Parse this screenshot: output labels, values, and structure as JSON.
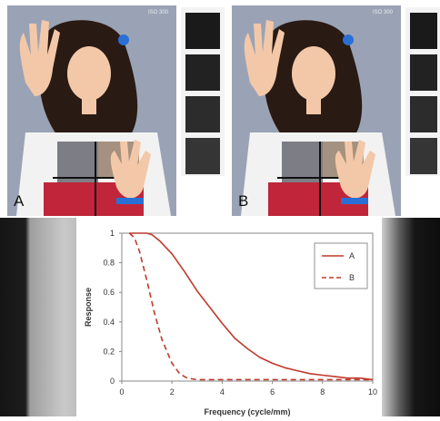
{
  "photos": [
    {
      "label": "A",
      "iso": "ISO 300"
    },
    {
      "label": "B",
      "iso": "ISO 300"
    }
  ],
  "colors": {
    "series": "#c0392b",
    "skin": "#f3c8a8",
    "hair": "#2a1a14",
    "shirt_red": "#c0253a",
    "shirt_grey": "#7d7d85",
    "shirt_tan": "#a4917f",
    "shirt_white": "#f2f2f2",
    "backdrop": "#9aa3b5"
  },
  "chart_data": {
    "type": "line",
    "xlabel": "Frequency (cycle/mm)",
    "ylabel": "Response",
    "xlim": [
      0,
      10
    ],
    "ylim": [
      0,
      1
    ],
    "xticks": [
      0,
      2,
      4,
      6,
      8,
      10
    ],
    "yticks": [
      0,
      0.2,
      0.4,
      0.6,
      0.8,
      1
    ],
    "legend_position": "top-right",
    "grid": false,
    "series": [
      {
        "name": "A",
        "style": "solid",
        "x": [
          0.3,
          1.0,
          1.2,
          1.5,
          2.0,
          2.5,
          3.0,
          3.5,
          4.0,
          4.5,
          5.0,
          5.5,
          6.0,
          6.5,
          7.0,
          7.5,
          8.0,
          8.5,
          9.0,
          9.5,
          10.0
        ],
        "y": [
          1.0,
          1.0,
          0.99,
          0.95,
          0.86,
          0.74,
          0.61,
          0.5,
          0.39,
          0.29,
          0.22,
          0.16,
          0.12,
          0.09,
          0.07,
          0.05,
          0.04,
          0.03,
          0.02,
          0.02,
          0.01
        ]
      },
      {
        "name": "B",
        "style": "dashed",
        "x": [
          0.3,
          0.5,
          0.7,
          1.0,
          1.3,
          1.6,
          2.0,
          2.3,
          2.6,
          3.0,
          4.0,
          5.0,
          6.0,
          7.0,
          8.0,
          9.0,
          10.0
        ],
        "y": [
          1.0,
          0.97,
          0.88,
          0.68,
          0.46,
          0.28,
          0.12,
          0.05,
          0.02,
          0.01,
          0.01,
          0.01,
          0.01,
          0.01,
          0.01,
          0.01,
          0.01
        ]
      }
    ]
  }
}
